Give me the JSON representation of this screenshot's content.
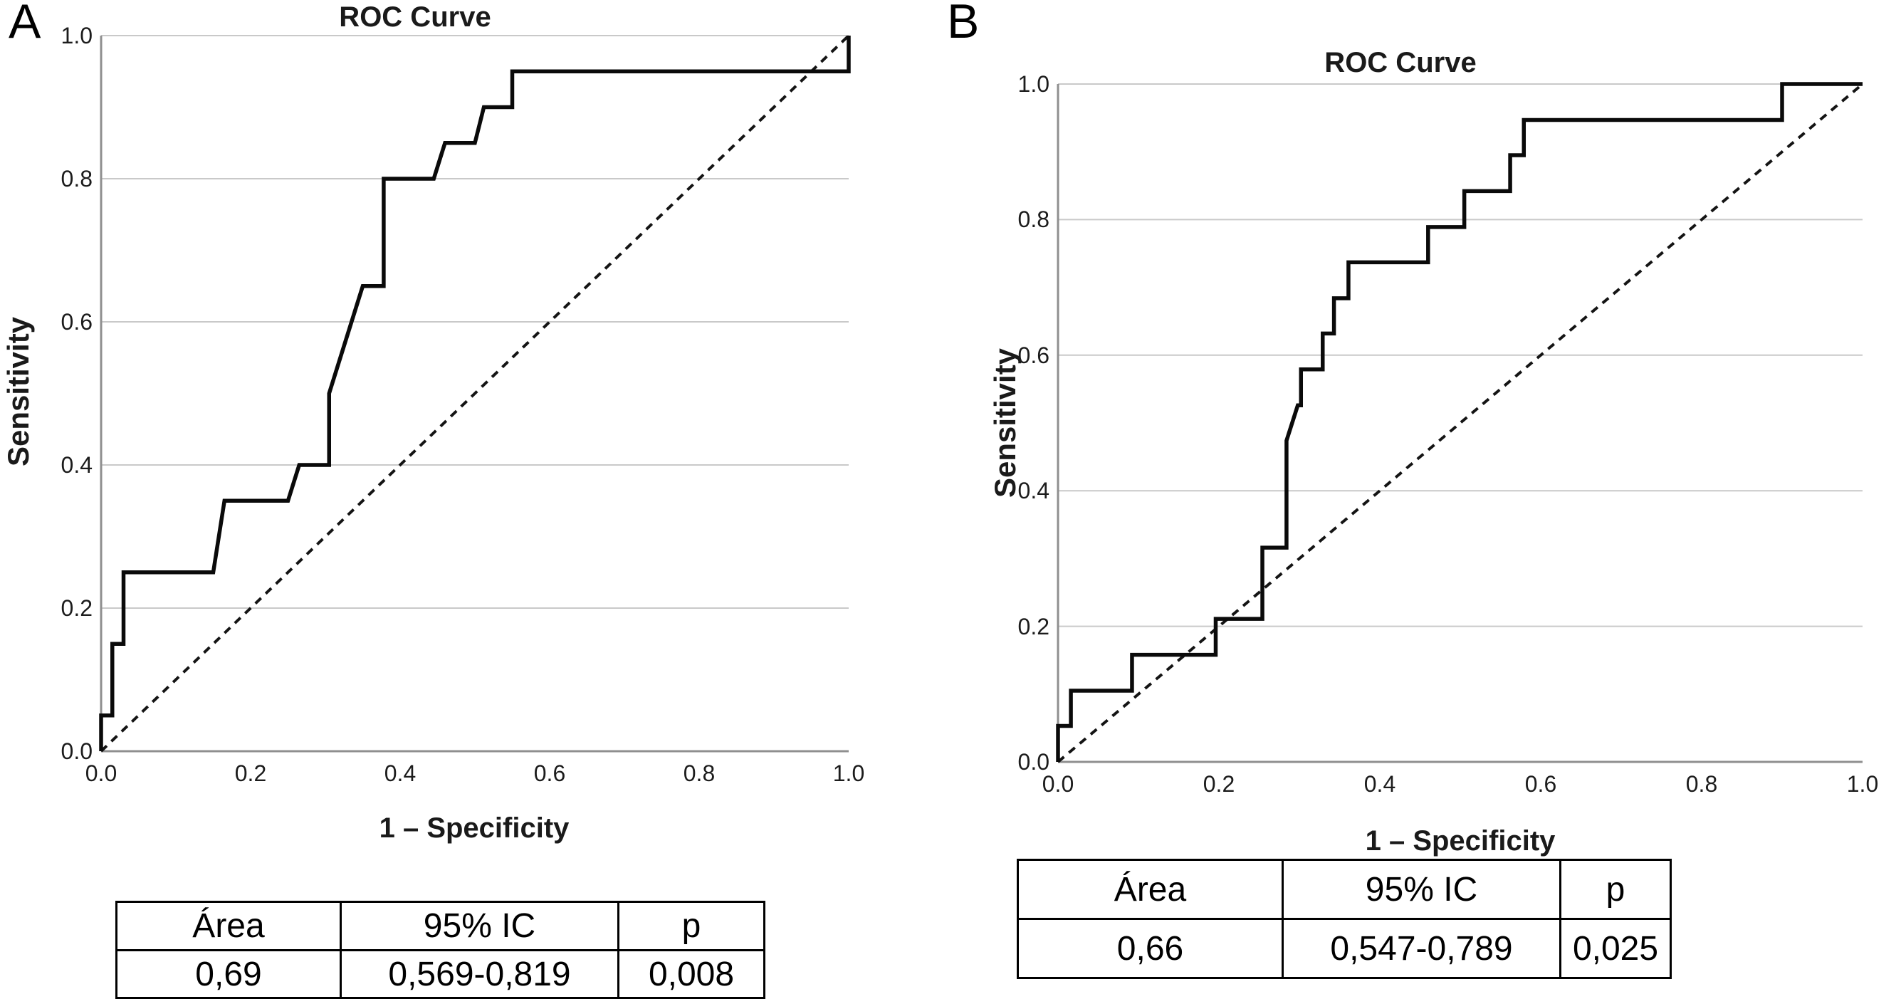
{
  "figure": {
    "panels": [
      {
        "panel_letter": "A",
        "title": "ROC Curve",
        "xlabel": "1 – Specificity",
        "ylabel": "Sensitivity",
        "xticks": [
          "0.0",
          "0.2",
          "0.4",
          "0.6",
          "0.8",
          "1.0"
        ],
        "yticks": [
          "0.0",
          "0.2",
          "0.4",
          "0.6",
          "0.8",
          "1.0"
        ],
        "table": {
          "headers": [
            "Área",
            "95% IC",
            "p"
          ],
          "row": [
            "0,69",
            "0,569-0,819",
            "0,008"
          ]
        }
      },
      {
        "panel_letter": "B",
        "title": "ROC Curve",
        "xlabel": "1 – Specificity",
        "ylabel": "Sensitivity",
        "xticks": [
          "0.0",
          "0.2",
          "0.4",
          "0.6",
          "0.8",
          "1.0"
        ],
        "yticks": [
          "0.0",
          "0.2",
          "0.4",
          "0.6",
          "0.8",
          "1.0"
        ],
        "table": {
          "headers": [
            "Área",
            "95% IC",
            "p"
          ],
          "row": [
            "0,66",
            "0,547-0,789",
            "0,025"
          ]
        }
      }
    ]
  },
  "chart_data": [
    {
      "type": "line",
      "title": "ROC Curve",
      "xlabel": "1 – Specificity",
      "ylabel": "Sensitivity",
      "xlim": [
        0,
        1
      ],
      "ylim": [
        0,
        1
      ],
      "grid": "horizontal",
      "legend": "none",
      "annotations": {
        "area": "0,69",
        "ci_95": "0,569-0,819",
        "p": "0,008"
      },
      "series": [
        {
          "name": "ROC curve",
          "style": "solid",
          "points": [
            [
              0,
              0
            ],
            [
              0,
              0.05
            ],
            [
              0.015,
              0.05
            ],
            [
              0.015,
              0.15
            ],
            [
              0.03,
              0.15
            ],
            [
              0.03,
              0.25
            ],
            [
              0.15,
              0.25
            ],
            [
              0.165,
              0.35
            ],
            [
              0.25,
              0.35
            ],
            [
              0.265,
              0.4
            ],
            [
              0.305,
              0.4
            ],
            [
              0.305,
              0.5
            ],
            [
              0.335,
              0.6
            ],
            [
              0.35,
              0.65
            ],
            [
              0.378,
              0.65
            ],
            [
              0.378,
              0.8
            ],
            [
              0.445,
              0.8
            ],
            [
              0.46,
              0.85
            ],
            [
              0.5,
              0.85
            ],
            [
              0.512,
              0.9
            ],
            [
              0.55,
              0.9
            ],
            [
              0.55,
              0.95
            ],
            [
              1,
              0.95
            ],
            [
              1,
              1
            ]
          ]
        },
        {
          "name": "reference diagonal",
          "style": "dashed",
          "points": [
            [
              0,
              0
            ],
            [
              1,
              1
            ]
          ]
        }
      ]
    },
    {
      "type": "line",
      "title": "ROC Curve",
      "xlabel": "1 – Specificity",
      "ylabel": "Sensitivity",
      "xlim": [
        0,
        1
      ],
      "ylim": [
        0,
        1
      ],
      "grid": "horizontal",
      "legend": "none",
      "annotations": {
        "area": "0,66",
        "ci_95": "0,547-0,789",
        "p": "0,025"
      },
      "series": [
        {
          "name": "ROC curve",
          "style": "solid",
          "points": [
            [
              0,
              0
            ],
            [
              0,
              0.053
            ],
            [
              0.016,
              0.053
            ],
            [
              0.016,
              0.105
            ],
            [
              0.092,
              0.105
            ],
            [
              0.092,
              0.158
            ],
            [
              0.196,
              0.158
            ],
            [
              0.196,
              0.211
            ],
            [
              0.254,
              0.211
            ],
            [
              0.254,
              0.316
            ],
            [
              0.284,
              0.316
            ],
            [
              0.284,
              0.474
            ],
            [
              0.298,
              0.526
            ],
            [
              0.302,
              0.526
            ],
            [
              0.302,
              0.579
            ],
            [
              0.329,
              0.579
            ],
            [
              0.329,
              0.632
            ],
            [
              0.343,
              0.632
            ],
            [
              0.343,
              0.684
            ],
            [
              0.361,
              0.684
            ],
            [
              0.361,
              0.737
            ],
            [
              0.46,
              0.737
            ],
            [
              0.46,
              0.789
            ],
            [
              0.505,
              0.789
            ],
            [
              0.505,
              0.842
            ],
            [
              0.562,
              0.842
            ],
            [
              0.562,
              0.895
            ],
            [
              0.579,
              0.895
            ],
            [
              0.579,
              0.947
            ],
            [
              0.9,
              0.947
            ],
            [
              0.9,
              1
            ],
            [
              1,
              1
            ]
          ]
        },
        {
          "name": "reference diagonal",
          "style": "dashed",
          "points": [
            [
              0,
              0
            ],
            [
              1,
              1
            ]
          ]
        }
      ]
    }
  ],
  "colors": {
    "curve": "#0a0a0a",
    "diagonal": "#141414",
    "gridline": "#c9c9c9",
    "axis": "#8f8f8f",
    "text": "#000000",
    "background": "#ffffff"
  }
}
